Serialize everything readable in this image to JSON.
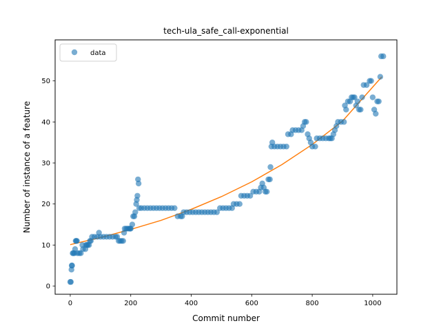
{
  "chart_data": {
    "type": "scatter",
    "title": "tech-ula_safe_call-exponential",
    "xlabel": "Commit number",
    "ylabel": "Number of instance of a feature",
    "xlim": [
      -50,
      1080
    ],
    "ylim": [
      -2,
      60
    ],
    "xticks": [
      0,
      200,
      400,
      600,
      800,
      1000
    ],
    "yticks": [
      0,
      10,
      20,
      30,
      40,
      50
    ],
    "grid": false,
    "legend": {
      "position": "upper-left",
      "entries": [
        "data"
      ]
    },
    "colors": {
      "data": "#1f77b4",
      "fit": "#ff7f0e"
    },
    "series": [
      {
        "name": "data",
        "kind": "scatter",
        "points": [
          [
            0,
            1
          ],
          [
            2,
            1
          ],
          [
            4,
            4
          ],
          [
            5,
            5
          ],
          [
            6,
            5
          ],
          [
            8,
            8
          ],
          [
            10,
            8
          ],
          [
            14,
            8
          ],
          [
            16,
            9
          ],
          [
            18,
            11
          ],
          [
            20,
            11
          ],
          [
            22,
            11
          ],
          [
            24,
            8
          ],
          [
            30,
            8
          ],
          [
            35,
            8
          ],
          [
            40,
            10
          ],
          [
            42,
            9
          ],
          [
            50,
            9
          ],
          [
            52,
            10
          ],
          [
            55,
            10
          ],
          [
            58,
            10
          ],
          [
            62,
            10
          ],
          [
            65,
            11
          ],
          [
            68,
            11
          ],
          [
            72,
            12
          ],
          [
            80,
            12
          ],
          [
            90,
            12
          ],
          [
            95,
            13
          ],
          [
            100,
            12
          ],
          [
            110,
            12
          ],
          [
            120,
            12
          ],
          [
            130,
            12
          ],
          [
            140,
            12
          ],
          [
            150,
            12
          ],
          [
            155,
            12
          ],
          [
            160,
            11
          ],
          [
            165,
            11
          ],
          [
            170,
            11
          ],
          [
            175,
            11
          ],
          [
            178,
            13
          ],
          [
            180,
            14
          ],
          [
            185,
            14
          ],
          [
            190,
            14
          ],
          [
            195,
            14
          ],
          [
            198,
            14
          ],
          [
            200,
            14
          ],
          [
            205,
            15
          ],
          [
            208,
            17
          ],
          [
            212,
            17
          ],
          [
            215,
            18
          ],
          [
            218,
            20
          ],
          [
            220,
            21
          ],
          [
            222,
            22
          ],
          [
            224,
            26
          ],
          [
            226,
            25
          ],
          [
            228,
            19
          ],
          [
            235,
            19
          ],
          [
            245,
            19
          ],
          [
            255,
            19
          ],
          [
            265,
            19
          ],
          [
            275,
            19
          ],
          [
            285,
            19
          ],
          [
            295,
            19
          ],
          [
            305,
            19
          ],
          [
            315,
            19
          ],
          [
            325,
            19
          ],
          [
            335,
            19
          ],
          [
            345,
            19
          ],
          [
            355,
            17
          ],
          [
            365,
            17
          ],
          [
            370,
            17
          ],
          [
            375,
            18
          ],
          [
            385,
            18
          ],
          [
            395,
            18
          ],
          [
            405,
            18
          ],
          [
            415,
            18
          ],
          [
            425,
            18
          ],
          [
            435,
            18
          ],
          [
            445,
            18
          ],
          [
            455,
            18
          ],
          [
            465,
            18
          ],
          [
            475,
            18
          ],
          [
            485,
            18
          ],
          [
            495,
            19
          ],
          [
            505,
            19
          ],
          [
            515,
            19
          ],
          [
            525,
            19
          ],
          [
            535,
            19
          ],
          [
            540,
            20
          ],
          [
            550,
            20
          ],
          [
            560,
            20
          ],
          [
            565,
            22
          ],
          [
            575,
            22
          ],
          [
            585,
            22
          ],
          [
            595,
            22
          ],
          [
            605,
            23
          ],
          [
            615,
            23
          ],
          [
            625,
            23
          ],
          [
            630,
            24
          ],
          [
            635,
            25
          ],
          [
            640,
            24
          ],
          [
            645,
            23
          ],
          [
            650,
            23
          ],
          [
            655,
            26
          ],
          [
            660,
            26
          ],
          [
            662,
            29
          ],
          [
            665,
            34
          ],
          [
            668,
            35
          ],
          [
            675,
            34
          ],
          [
            685,
            34
          ],
          [
            695,
            34
          ],
          [
            705,
            34
          ],
          [
            715,
            34
          ],
          [
            720,
            37
          ],
          [
            730,
            37
          ],
          [
            735,
            38
          ],
          [
            745,
            38
          ],
          [
            755,
            38
          ],
          [
            765,
            38
          ],
          [
            770,
            39
          ],
          [
            775,
            40
          ],
          [
            780,
            40
          ],
          [
            785,
            37
          ],
          [
            790,
            36
          ],
          [
            795,
            35
          ],
          [
            800,
            34
          ],
          [
            810,
            34
          ],
          [
            815,
            36
          ],
          [
            825,
            36
          ],
          [
            835,
            36
          ],
          [
            845,
            36
          ],
          [
            855,
            36
          ],
          [
            860,
            36
          ],
          [
            865,
            36
          ],
          [
            870,
            37
          ],
          [
            875,
            38
          ],
          [
            880,
            39
          ],
          [
            885,
            40
          ],
          [
            895,
            40
          ],
          [
            905,
            40
          ],
          [
            908,
            44
          ],
          [
            912,
            43
          ],
          [
            918,
            45
          ],
          [
            925,
            45
          ],
          [
            930,
            46
          ],
          [
            935,
            46
          ],
          [
            940,
            46
          ],
          [
            945,
            44
          ],
          [
            950,
            45
          ],
          [
            955,
            43
          ],
          [
            960,
            43
          ],
          [
            965,
            46
          ],
          [
            970,
            49
          ],
          [
            980,
            49
          ],
          [
            990,
            50
          ],
          [
            995,
            50
          ],
          [
            1000,
            46
          ],
          [
            1005,
            43
          ],
          [
            1010,
            42
          ],
          [
            1015,
            45
          ],
          [
            1020,
            45
          ],
          [
            1025,
            51
          ],
          [
            1028,
            56
          ],
          [
            1035,
            56
          ]
        ]
      },
      {
        "name": "",
        "kind": "line",
        "model": "exponential",
        "x": [
          0,
          100,
          200,
          300,
          400,
          500,
          600,
          700,
          800,
          900,
          1030
        ],
        "y": [
          10.1,
          11.8,
          13.8,
          16.0,
          18.7,
          21.8,
          25.4,
          29.6,
          34.5,
          40.2,
          51.0
        ]
      }
    ]
  }
}
